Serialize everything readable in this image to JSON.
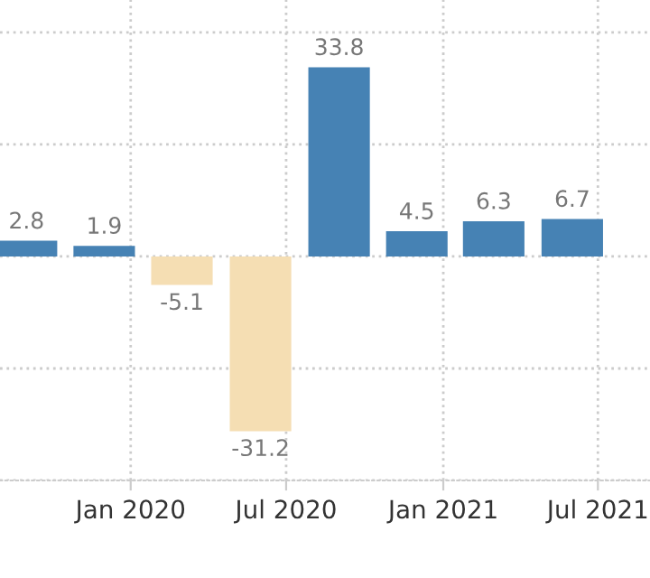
{
  "chart_data": {
    "type": "bar",
    "x": [
      "2019-09-01",
      "2019-12-01",
      "2020-03-01",
      "2020-06-01",
      "2020-09-01",
      "2020-12-01",
      "2021-03-01",
      "2021-06-01"
    ],
    "values": [
      2.8,
      1.9,
      -5.1,
      -31.2,
      33.8,
      4.5,
      6.3,
      6.7
    ],
    "colors": [
      "#4682b4",
      "#4682b4",
      "#f5deb3",
      "#f5deb3",
      "#4682b4",
      "#4682b4",
      "#4682b4",
      "#4682b4"
    ],
    "data_labels": true,
    "xlim": [
      "2019-08-01",
      "2021-08-31"
    ],
    "xticks": [
      {
        "value": "2020-01-01",
        "label": "Jan 2020"
      },
      {
        "value": "2020-07-01",
        "label": "Jul 2020"
      },
      {
        "value": "2021-01-01",
        "label": "Jan 2021"
      },
      {
        "value": "2021-07-01",
        "label": "Jul 2021"
      }
    ],
    "ylim": [
      -40,
      45.8
    ],
    "yticks": [
      {
        "value": -40,
        "label": null
      },
      {
        "value": -20,
        "label": null
      },
      {
        "value": 0,
        "label": null
      },
      {
        "value": 20,
        "label": null
      },
      {
        "value": 40,
        "label": null
      }
    ],
    "tick_labels": "x",
    "grid": true
  }
}
